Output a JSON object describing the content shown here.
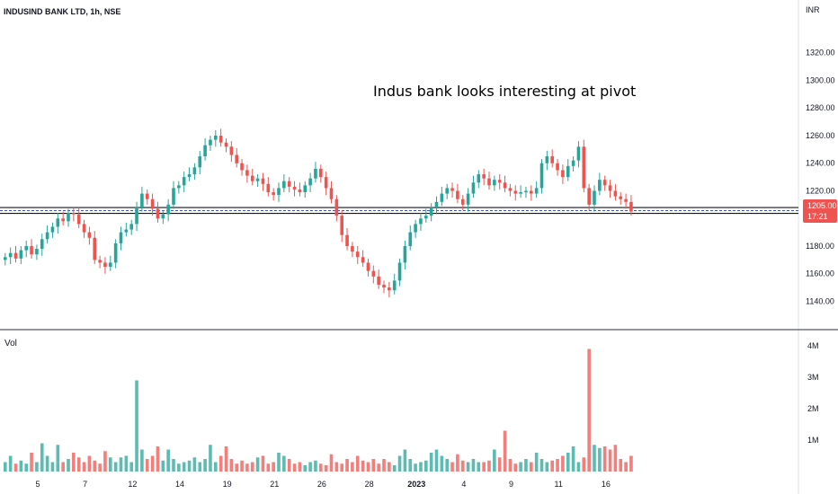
{
  "header": {
    "symbol": "INDUSIND BANK LTD, 1h, NSE"
  },
  "price_axis": {
    "currency": "INR"
  },
  "annotation": "Indus bank looks interesting at pivot",
  "volume_panel": {
    "label": "Vol"
  },
  "last_price": {
    "value": "1205.00",
    "countdown": "17:21",
    "color": "#ef5350"
  },
  "colors": {
    "up": "#26a69a",
    "down": "#ef5350",
    "pivot_line": "#131722",
    "pivot_band": "#3f51b5"
  },
  "chart_data": [
    {
      "type": "candlestick",
      "title": "INDUSIND BANK LTD, 1h, NSE",
      "ylabel": "INR",
      "y_ticks": [
        "1140.00",
        "1160.00",
        "1180.00",
        "1200.00",
        "1220.00",
        "1240.00",
        "1260.00",
        "1280.00",
        "1300.00",
        "1320.00"
      ],
      "ylim": [
        1126,
        1340
      ],
      "x_ticks": [
        {
          "label": "5",
          "index": 6.5
        },
        {
          "label": "7",
          "index": 15.5
        },
        {
          "label": "12",
          "index": 24.5
        },
        {
          "label": "14",
          "index": 33.5
        },
        {
          "label": "19",
          "index": 42.5
        },
        {
          "label": "21",
          "index": 51.5
        },
        {
          "label": "26",
          "index": 60.5
        },
        {
          "label": "28",
          "index": 69.5
        },
        {
          "label": "2023",
          "index": 78.5,
          "bold": true
        },
        {
          "label": "4",
          "index": 87.5
        },
        {
          "label": "9",
          "index": 96.5
        },
        {
          "label": "11",
          "index": 105.5
        },
        {
          "label": "16",
          "index": 114.5
        }
      ],
      "pivot_level": 1205,
      "closes": [
        1172,
        1175,
        1171,
        1177,
        1180,
        1174,
        1178,
        1185,
        1190,
        1194,
        1200,
        1198,
        1204,
        1203,
        1196,
        1190,
        1186,
        1170,
        1168,
        1165,
        1168,
        1182,
        1190,
        1192,
        1196,
        1208,
        1218,
        1214,
        1207,
        1200,
        1203,
        1210,
        1222,
        1224,
        1230,
        1232,
        1237,
        1245,
        1253,
        1257,
        1260,
        1255,
        1252,
        1246,
        1240,
        1235,
        1231,
        1227,
        1229,
        1225,
        1219,
        1217,
        1222,
        1227,
        1223,
        1221,
        1219,
        1224,
        1229,
        1236,
        1230,
        1222,
        1214,
        1202,
        1188,
        1180,
        1176,
        1172,
        1168,
        1162,
        1158,
        1152,
        1150,
        1148,
        1155,
        1168,
        1180,
        1190,
        1196,
        1200,
        1202,
        1208,
        1212,
        1218,
        1222,
        1220,
        1214,
        1210,
        1218,
        1226,
        1232,
        1229,
        1224,
        1228,
        1226,
        1222,
        1220,
        1218,
        1219,
        1220,
        1218,
        1222,
        1240,
        1245,
        1240,
        1235,
        1230,
        1238,
        1242,
        1252,
        1222,
        1210,
        1220,
        1228,
        1224,
        1220,
        1216,
        1214,
        1212,
        1205
      ]
    },
    {
      "type": "bar",
      "title": "Vol",
      "y_ticks": [
        "1M",
        "2M",
        "3M",
        "4M"
      ],
      "ylim": [
        0,
        4200000
      ],
      "values": [
        300000,
        500000,
        250000,
        350000,
        250000,
        600000,
        300000,
        900000,
        500000,
        300000,
        850000,
        300000,
        400000,
        600000,
        450000,
        300000,
        500000,
        350000,
        250000,
        650000,
        450000,
        300000,
        450000,
        500000,
        300000,
        2900000,
        700000,
        400000,
        500000,
        800000,
        350000,
        700000,
        400000,
        250000,
        300000,
        350000,
        450000,
        300000,
        400000,
        850000,
        300000,
        500000,
        800000,
        400000,
        250000,
        350000,
        250000,
        300000,
        450000,
        500000,
        250000,
        300000,
        600000,
        500000,
        400000,
        250000,
        300000,
        200000,
        300000,
        350000,
        250000,
        200000,
        550000,
        300000,
        250000,
        400000,
        300000,
        500000,
        350000,
        300000,
        400000,
        250000,
        400000,
        300000,
        200000,
        500000,
        700000,
        400000,
        250000,
        300000,
        350000,
        600000,
        700000,
        500000,
        400000,
        300000,
        550000,
        350000,
        300000,
        400000,
        300000,
        300000,
        350000,
        700000,
        450000,
        1300000,
        400000,
        250000,
        300000,
        400000,
        300000,
        600000,
        400000,
        300000,
        350000,
        400000,
        500000,
        600000,
        800000,
        300000,
        450000,
        3900000,
        850000,
        750000,
        800000,
        700000,
        850000,
        400000,
        300000,
        500000
      ]
    }
  ]
}
